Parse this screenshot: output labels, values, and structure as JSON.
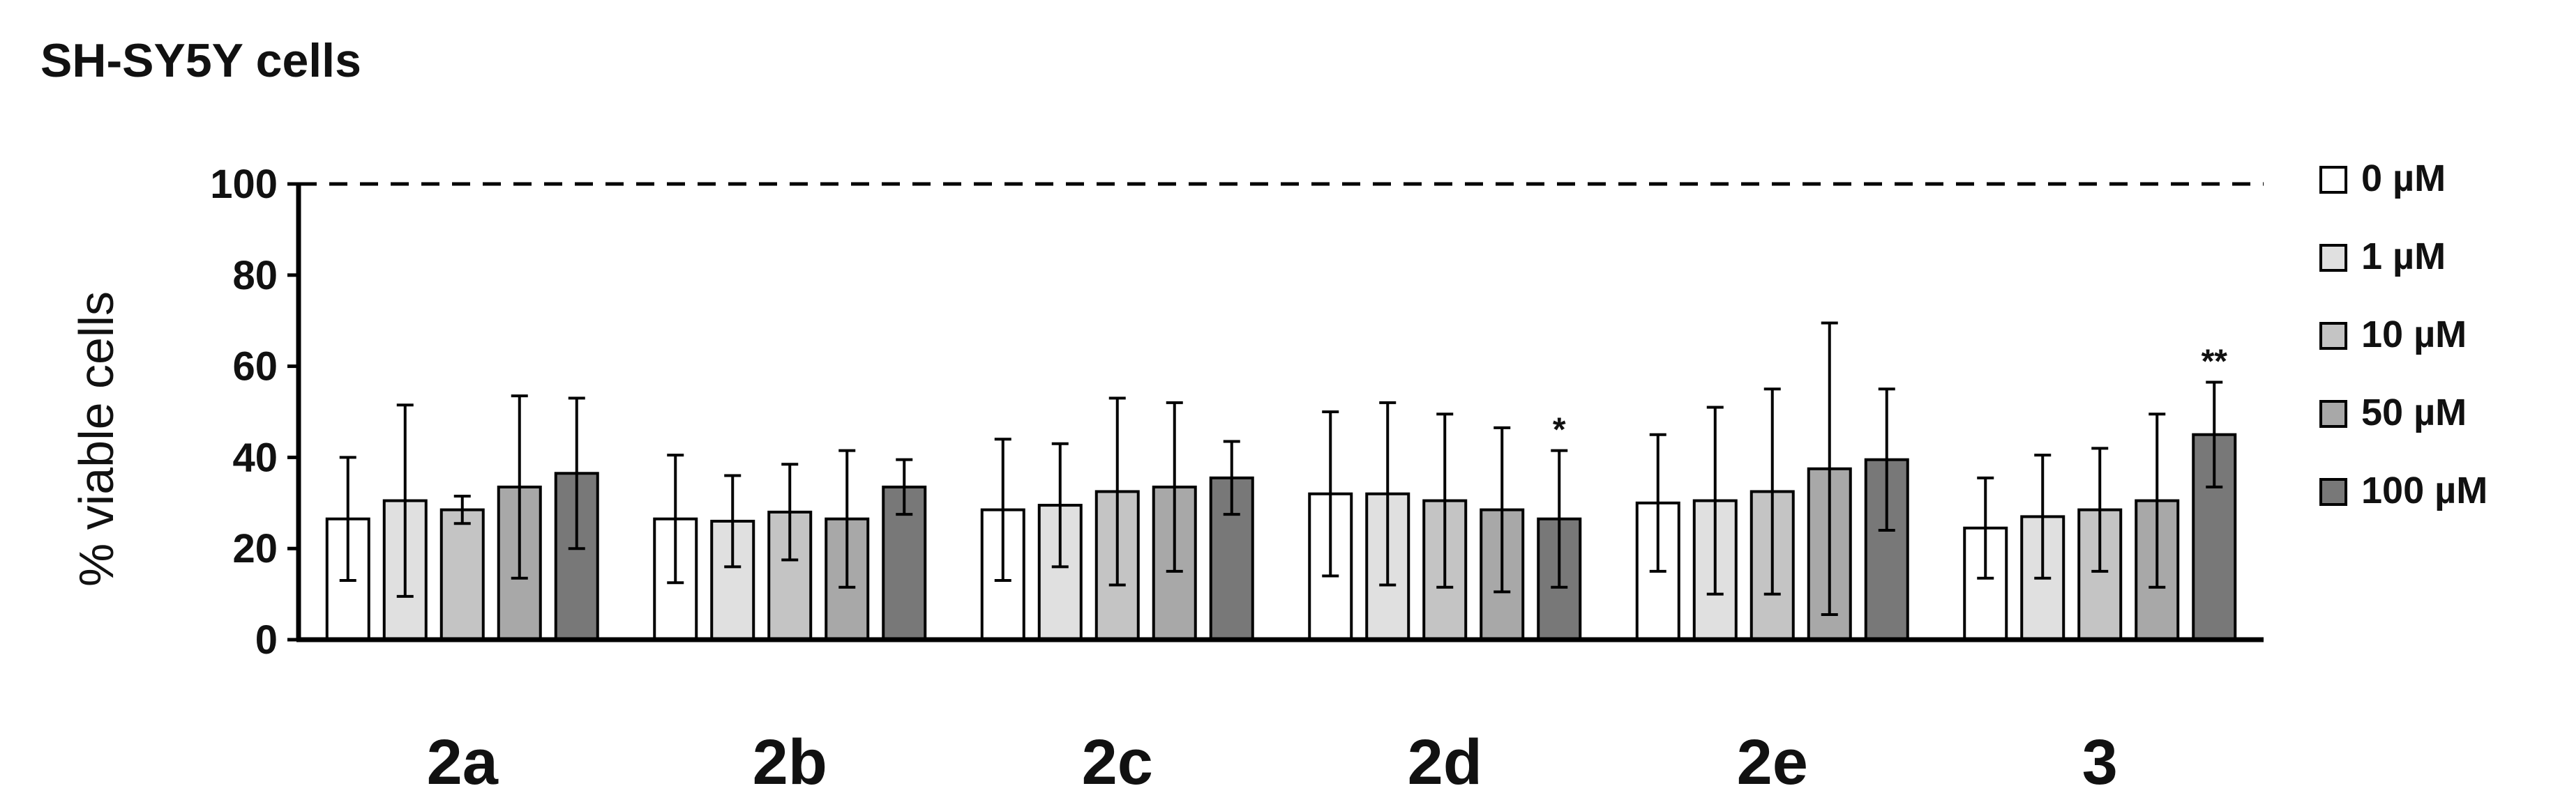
{
  "chart_data": {
    "type": "bar",
    "title": "SH-SY5Y cells",
    "ylabel": "% viable cells",
    "xlabel": "",
    "ylim": [
      0,
      100
    ],
    "yticks": [
      0,
      20,
      40,
      60,
      80,
      100
    ],
    "reference_line": 100,
    "grid": false,
    "legend_position": "right",
    "categories": [
      "2a",
      "2b",
      "2c",
      "2d",
      "2e",
      "3"
    ],
    "series": [
      {
        "name": "0 µM",
        "color": "#ffffff",
        "values": [
          26.5,
          26.5,
          28.5,
          32,
          30,
          24.5
        ],
        "errors": [
          13.5,
          14,
          15.5,
          18,
          15,
          11
        ]
      },
      {
        "name": "1 µM",
        "color": "#e0e0e0",
        "values": [
          30.5,
          26,
          29.5,
          32,
          30.5,
          27
        ],
        "errors": [
          21,
          10,
          13.5,
          20,
          20.5,
          13.5
        ]
      },
      {
        "name": "10 µM",
        "color": "#c4c4c4",
        "values": [
          28.5,
          28,
          32.5,
          30.5,
          32.5,
          28.5
        ],
        "errors": [
          3,
          10.5,
          20.5,
          19,
          22.5,
          13.5
        ]
      },
      {
        "name": "50 µM",
        "color": "#a8a8a8",
        "values": [
          33.5,
          26.5,
          33.5,
          28.5,
          37.5,
          30.5
        ],
        "errors": [
          20,
          15,
          18.5,
          18,
          32,
          19
        ]
      },
      {
        "name": "100 µM",
        "color": "#787878",
        "values": [
          36.5,
          33.5,
          35.5,
          26.5,
          39.5,
          45
        ],
        "errors": [
          16.5,
          6,
          8,
          15,
          15.5,
          11.5
        ]
      }
    ],
    "annotations": [
      {
        "category": "2d",
        "series": "100 µM",
        "text": "*"
      },
      {
        "category": "3",
        "series": "100 µM",
        "text": "**"
      }
    ]
  }
}
